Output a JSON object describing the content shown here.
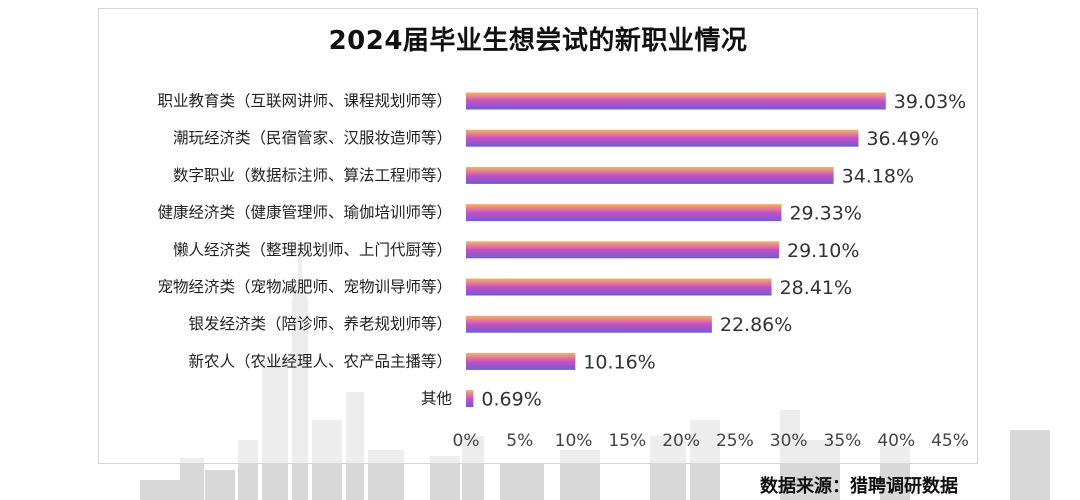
{
  "chart_data": {
    "type": "bar",
    "orientation": "horizontal",
    "title": "2024届毕业生想尝试的新职业情况",
    "categories": [
      "职业教育类（互联网讲师、课程规划师等）",
      "潮玩经济类（民宿管家、汉服妆造师等）",
      "数字职业（数据标注师、算法工程师等）",
      "健康经济类（健康管理师、瑜伽培训师等）",
      "懒人经济类（整理规划师、上门代厨等）",
      "宠物经济类（宠物减肥师、宠物训导师等）",
      "银发经济类（陪诊师、养老规划师等）",
      "新农人（农业经理人、农产品主播等）",
      "其他"
    ],
    "values": [
      39.03,
      36.49,
      34.18,
      29.33,
      29.1,
      28.41,
      22.86,
      10.16,
      0.69
    ],
    "value_labels": [
      "39.03%",
      "36.49%",
      "34.18%",
      "29.33%",
      "29.10%",
      "28.41%",
      "22.86%",
      "10.16%",
      "0.69%"
    ],
    "xlim": [
      0,
      45
    ],
    "x_ticks": [
      "0%",
      "5%",
      "10%",
      "15%",
      "20%",
      "25%",
      "30%",
      "35%",
      "40%",
      "45%"
    ],
    "grid": false,
    "legend": "none",
    "bar_gradient": [
      "#f6b266",
      "#c94fc3",
      "#6c5cd8"
    ]
  },
  "source_text": "数据来源：猎聘调研数据"
}
